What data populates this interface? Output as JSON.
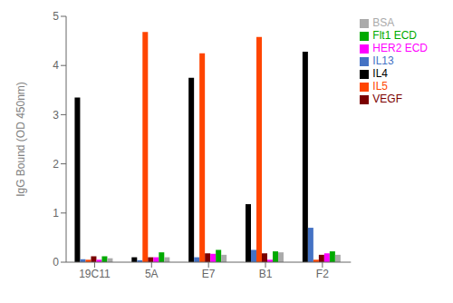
{
  "chart_data": {
    "type": "bar",
    "categories": [
      "19C11",
      "5A",
      "E7",
      "B1",
      "F2"
    ],
    "series": [
      {
        "name": "IL4",
        "color": "#000000",
        "values": [
          3.35,
          0.1,
          3.75,
          1.18,
          4.28
        ]
      },
      {
        "name": "IL13",
        "color": "#4472C4",
        "values": [
          0.06,
          0.04,
          0.1,
          0.25,
          0.7
        ]
      },
      {
        "name": "IL5",
        "color": "#FF4500",
        "values": [
          0.05,
          4.68,
          4.25,
          4.58,
          0.05
        ]
      },
      {
        "name": "VEGF",
        "color": "#7B0000",
        "values": [
          0.12,
          0.1,
          0.18,
          0.18,
          0.15
        ]
      },
      {
        "name": "HER2 ECD",
        "color": "#FF00FF",
        "values": [
          0.05,
          0.1,
          0.17,
          0.05,
          0.18
        ]
      },
      {
        "name": "Flt1 ECD",
        "color": "#00AA00",
        "values": [
          0.12,
          0.2,
          0.25,
          0.22,
          0.22
        ]
      },
      {
        "name": "BSA",
        "color": "#AAAAAA",
        "values": [
          0.08,
          0.1,
          0.15,
          0.2,
          0.15
        ]
      }
    ],
    "ylabel": "IgG Bound (OD 450nm)",
    "ylim": [
      0,
      5
    ],
    "yticks": [
      0,
      1,
      2,
      3,
      4,
      5
    ],
    "grid": false,
    "legend": "upper right"
  }
}
